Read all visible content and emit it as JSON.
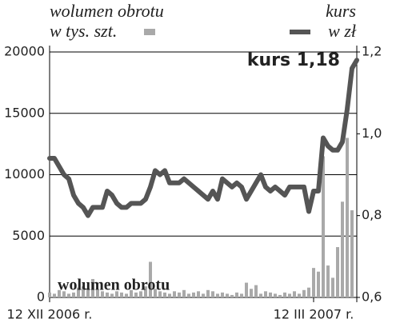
{
  "chart_data": {
    "type": "bar-line",
    "annotation": "kurs 1,18",
    "categories": [
      "12 XII 2006 r.",
      null,
      null,
      null,
      null,
      null,
      null,
      null,
      null,
      null,
      null,
      null,
      null,
      null,
      null,
      null,
      null,
      null,
      null,
      null,
      null,
      null,
      null,
      null,
      null,
      null,
      null,
      null,
      null,
      null,
      null,
      null,
      null,
      null,
      null,
      null,
      null,
      null,
      null,
      null,
      null,
      null,
      null,
      null,
      null,
      null,
      null,
      null,
      null,
      null,
      null,
      null,
      null,
      null,
      null,
      "12 III 2007 r.",
      null,
      null,
      null,
      null,
      null,
      null,
      null,
      null,
      null
    ],
    "series": [
      {
        "name": "wolumen obrotu",
        "unit": "w tys. szt.",
        "type": "bar",
        "color": "#a9a9a9",
        "values": [
          400,
          300,
          600,
          500,
          300,
          400,
          800,
          900,
          700,
          1500,
          600,
          500,
          400,
          300,
          500,
          400,
          300,
          600,
          400,
          500,
          900,
          2900,
          700,
          500,
          400,
          300,
          500,
          400,
          600,
          300,
          400,
          500,
          300,
          600,
          500,
          300,
          400,
          300,
          200,
          400,
          300,
          1200,
          700,
          1000,
          300,
          500,
          400,
          300,
          200,
          400,
          300,
          500,
          300,
          600,
          800,
          2400,
          2100,
          11500,
          2600,
          1600,
          4100,
          7800,
          13000,
          7100,
          null
        ]
      },
      {
        "name": "kurs",
        "unit": "w zł",
        "type": "line",
        "axis": "y2",
        "color": "#555555",
        "values": [
          0.94,
          0.94,
          0.92,
          0.9,
          0.89,
          0.85,
          0.83,
          0.82,
          0.8,
          0.82,
          0.82,
          0.82,
          0.86,
          0.85,
          0.83,
          0.82,
          0.82,
          0.83,
          0.83,
          0.83,
          0.84,
          0.87,
          0.91,
          0.9,
          0.91,
          0.88,
          0.88,
          0.88,
          0.89,
          0.88,
          0.87,
          0.86,
          0.85,
          0.84,
          0.86,
          0.84,
          0.89,
          0.88,
          0.87,
          0.88,
          0.87,
          0.84,
          0.86,
          0.88,
          0.9,
          0.87,
          0.86,
          0.87,
          0.86,
          0.85,
          0.87,
          0.87,
          0.87,
          0.87,
          0.81,
          0.86,
          0.86,
          0.99,
          0.97,
          0.96,
          0.96,
          0.98,
          1.06,
          1.16,
          1.18
        ]
      }
    ],
    "ylim": [
      0,
      20000
    ],
    "yticks": [
      0,
      5000,
      10000,
      15000,
      20000
    ],
    "y2lim": [
      0.6,
      1.2
    ],
    "y2ticks": [
      {
        "value": 0.6,
        "label": "0,6"
      },
      {
        "value": 0.8,
        "label": "0,8"
      },
      {
        "value": 1.0,
        "label": "1,0"
      },
      {
        "value": 1.2,
        "label": "1,2"
      }
    ],
    "grid": true
  }
}
